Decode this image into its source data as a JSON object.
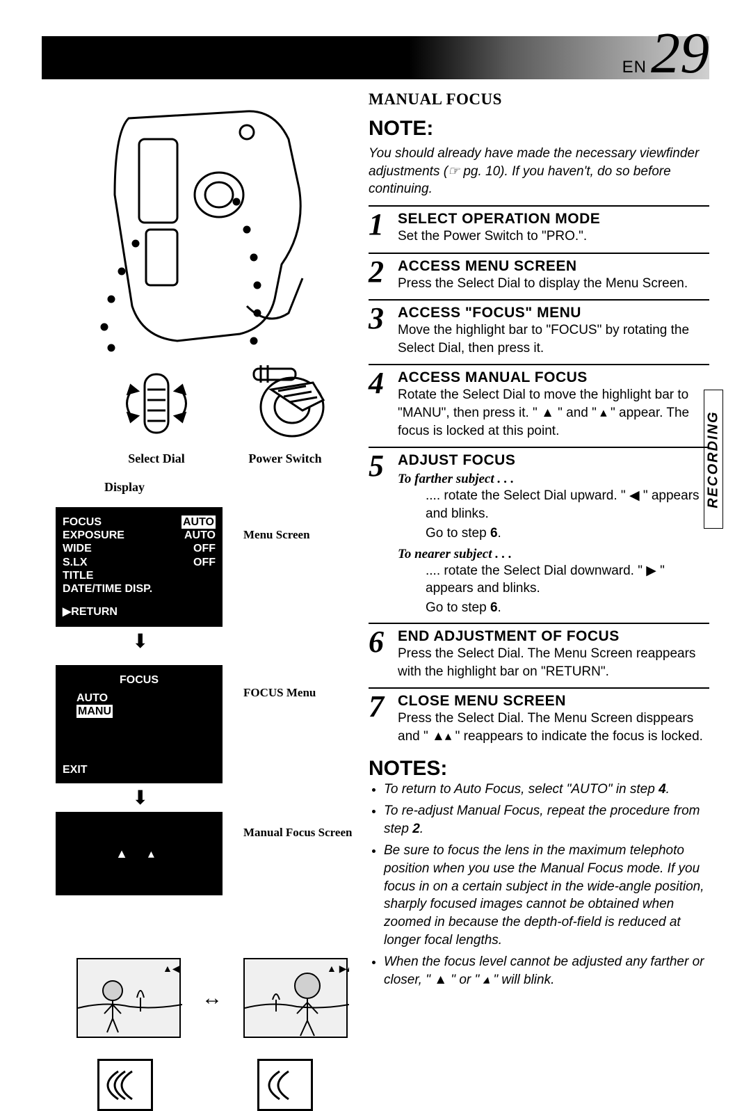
{
  "page": {
    "lang": "EN",
    "number": "29"
  },
  "sideTab": "RECORDING",
  "left": {
    "selectDialLabel": "Select Dial",
    "powerSwitchLabel": "Power Switch",
    "displayLabel": "Display",
    "menuScreen": {
      "caption": "Menu Screen",
      "rows": [
        {
          "l": "FOCUS",
          "r": "AUTO",
          "hl": "r"
        },
        {
          "l": "EXPOSURE",
          "r": "AUTO"
        },
        {
          "l": "WIDE",
          "r": "OFF"
        },
        {
          "l": "S.LX",
          "r": "OFF"
        },
        {
          "l": "TITLE",
          "r": ""
        },
        {
          "l": "DATE/TIME DISP.",
          "r": ""
        }
      ],
      "return": "▶RETURN"
    },
    "focusMenu": {
      "caption": "FOCUS Menu",
      "title": "FOCUS",
      "auto": "AUTO",
      "manu": "MANU",
      "exit": "EXIT"
    },
    "manualFocusScreen": {
      "caption": "Manual Focus Screen",
      "icons": "▲ ▴"
    }
  },
  "right": {
    "sectionHeading": "MANUAL FOCUS",
    "noteHeading": "NOTE:",
    "noteText": "You should already have made the necessary viewfinder adjustments (☞ pg. 10). If you haven't, do so before continuing.",
    "steps": [
      {
        "n": "1",
        "title": "SELECT OPERATION MODE",
        "text": "Set the Power Switch to \"PRO.\"."
      },
      {
        "n": "2",
        "title": "ACCESS MENU SCREEN",
        "text": "Press the Select Dial to display the Menu Screen."
      },
      {
        "n": "3",
        "title": "ACCESS \"FOCUS\" MENU",
        "text": "Move the highlight bar to \"FOCUS\" by rotating the Select Dial, then press it."
      },
      {
        "n": "4",
        "title": "ACCESS MANUAL FOCUS",
        "text": "Rotate the Select Dial to move the highlight bar to \"MANU\", then press it. \" ▲ \" and \" ▴ \" appear. The focus is locked at this point."
      }
    ],
    "step5": {
      "n": "5",
      "title": "ADJUST FOCUS",
      "farther": {
        "h": "To farther subject . . .",
        "t": ".... rotate the Select Dial upward. \" ◀ \" appears and blinks.",
        "go": "Go to step 6."
      },
      "nearer": {
        "h": "To nearer subject . . .",
        "t": ".... rotate the Select Dial downward. \" ▶ \" appears and blinks.",
        "go": "Go to step 6."
      }
    },
    "step6": {
      "n": "6",
      "title": "END ADJUSTMENT OF FOCUS",
      "text": "Press the Select Dial. The Menu Screen reappears with the highlight bar on \"RETURN\"."
    },
    "step7": {
      "n": "7",
      "title": "CLOSE MENU SCREEN",
      "text": "Press the Select Dial. The Menu Screen disppears and \" ▲▴ \" reappears to indicate the focus is locked."
    },
    "notesHeading": "NOTES:",
    "notes": [
      "To return to Auto Focus, select \"AUTO\" in step 4.",
      "To re-adjust Manual Focus, repeat the procedure from step 2.",
      "Be sure to focus the lens in the maximum telephoto position when you use the Manual Focus mode. If you focus in on a certain subject in the wide-angle position, sharply focused images cannot be obtained when zoomed in because the depth-of-field is reduced at longer focal lengths.",
      "When the focus level cannot be adjusted any farther or closer, \" ▲ \" or \" ▴ \" will blink."
    ]
  }
}
